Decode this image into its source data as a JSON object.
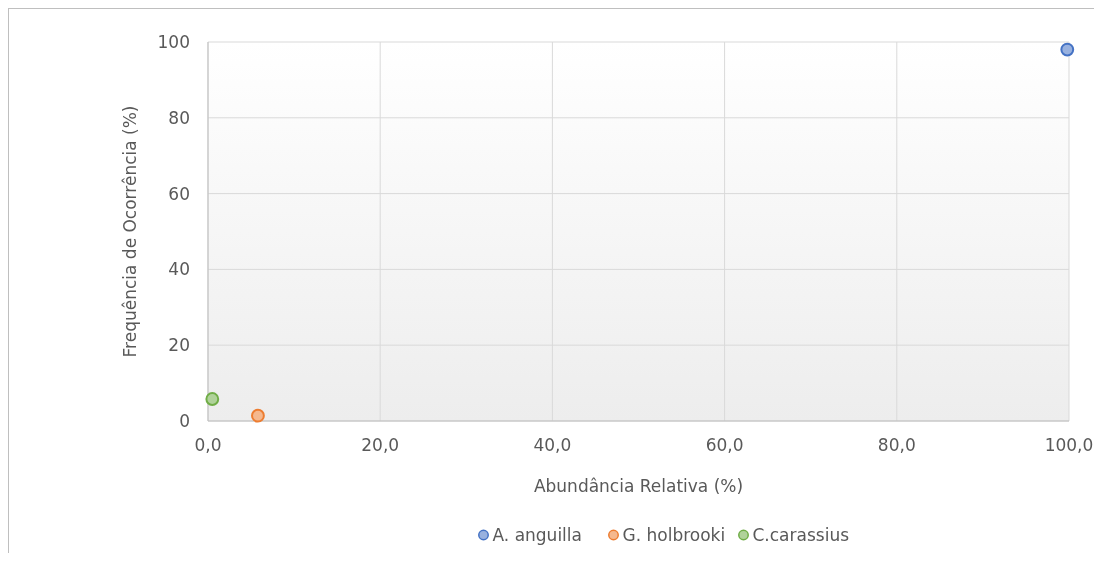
{
  "chart_data": {
    "type": "scatter",
    "xlabel": "Abundância Relativa (%)",
    "ylabel": "Frequência de Ocorrência (%)",
    "xlim": [
      0,
      100
    ],
    "ylim": [
      0,
      100
    ],
    "xticks": [
      {
        "value": 0,
        "label": "0,0"
      },
      {
        "value": 20,
        "label": "20,0"
      },
      {
        "value": 40,
        "label": "40,0"
      },
      {
        "value": 60,
        "label": "60,0"
      },
      {
        "value": 80,
        "label": "80,0"
      },
      {
        "value": 100,
        "label": "100,0"
      }
    ],
    "yticks": [
      0,
      20,
      40,
      60,
      80,
      100
    ],
    "grid": true,
    "legend": "bottom",
    "marker": "circle",
    "series": [
      {
        "name": "A. anguilla",
        "color": "#4472c4",
        "x": [
          99.8
        ],
        "values": [
          98
        ]
      },
      {
        "name": "G. holbrooki",
        "color": "#ed7d31",
        "x": [
          5.8
        ],
        "values": [
          1.4
        ]
      },
      {
        "name": "C.carassius",
        "color": "#70ad47",
        "x": [
          0.5
        ],
        "values": [
          5.8
        ]
      }
    ]
  }
}
